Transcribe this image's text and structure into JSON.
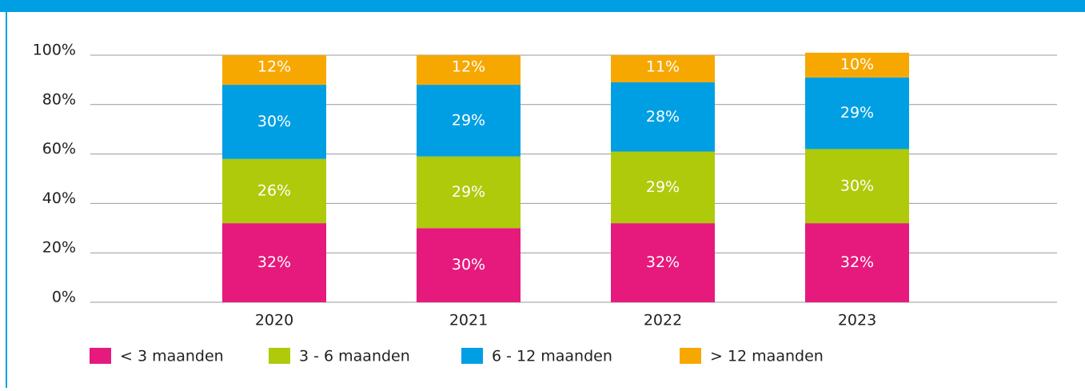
{
  "chart_data": {
    "type": "stacked-bar",
    "categories": [
      "2020",
      "2021",
      "2022",
      "2023"
    ],
    "series": [
      {
        "name": "< 3 maanden",
        "color": "#e6197d",
        "values": [
          32,
          30,
          32,
          32
        ],
        "value_labels": [
          "32%",
          "30%",
          "32%",
          "32%"
        ]
      },
      {
        "name": "3 - 6 maanden",
        "color": "#afca0b",
        "values": [
          26,
          29,
          29,
          30
        ],
        "value_labels": [
          "26%",
          "29%",
          "29%",
          "30%"
        ]
      },
      {
        "name": "6 - 12 maanden",
        "color": "#009fe3",
        "values": [
          30,
          29,
          28,
          29
        ],
        "value_labels": [
          "30%",
          "29%",
          "28%",
          "29%"
        ]
      },
      {
        "name": "> 12 maanden",
        "color": "#f7a800",
        "values": [
          12,
          12,
          11,
          10
        ],
        "value_labels": [
          "12%",
          "12%",
          "11%",
          "10%"
        ]
      }
    ],
    "ylim": [
      0,
      100
    ],
    "yticks": [
      {
        "value": 0,
        "label": "0%"
      },
      {
        "value": 20,
        "label": "20%"
      },
      {
        "value": 40,
        "label": "40%"
      },
      {
        "value": 60,
        "label": "60%"
      },
      {
        "value": 80,
        "label": "80%"
      },
      {
        "value": 100,
        "label": "100%"
      }
    ],
    "grid": true
  }
}
